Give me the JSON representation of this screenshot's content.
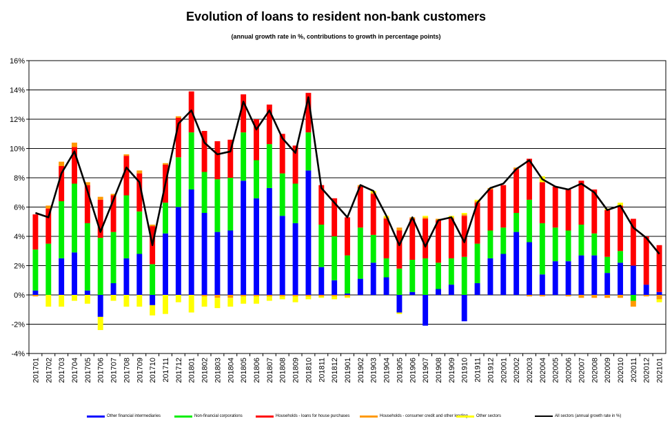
{
  "chart_data": {
    "type": "bar",
    "stacked": true,
    "title": "Evolution of loans to resident non-bank customers",
    "subtitle": "(annual growth rate in %, contributions to growth in percentage points)",
    "ylim": [
      -4,
      16
    ],
    "yticks": [
      "-4%",
      "-2%",
      "0%",
      "2%",
      "4%",
      "6%",
      "8%",
      "10%",
      "12%",
      "14%",
      "16%"
    ],
    "grid": true,
    "legend_position": "bottom",
    "categories": [
      "201701",
      "201702",
      "201703",
      "201704",
      "201705",
      "201706",
      "201707",
      "201708",
      "201709",
      "201710",
      "201711",
      "201712",
      "201801",
      "201802",
      "201803",
      "201804",
      "201805",
      "201806",
      "201807",
      "201808",
      "201809",
      "201810",
      "201811",
      "201812",
      "201901",
      "201902",
      "201903",
      "201904",
      "201905",
      "201906",
      "201907",
      "201908",
      "201909",
      "201910",
      "201911",
      "201912",
      "202001",
      "202002",
      "202003",
      "202004",
      "202005",
      "202006",
      "202007",
      "202008",
      "202009",
      "202010",
      "202011",
      "202012",
      "202101"
    ],
    "series": [
      {
        "name": "Other financial intermediaries",
        "color": "#0000ff",
        "values": [
          0.3,
          0.0,
          2.5,
          2.9,
          0.3,
          -1.5,
          0.8,
          2.5,
          2.8,
          -0.7,
          4.2,
          6.0,
          7.2,
          5.6,
          4.3,
          4.4,
          7.8,
          6.6,
          7.3,
          5.4,
          4.9,
          8.5,
          1.9,
          1.0,
          0.1,
          1.1,
          2.2,
          1.2,
          -1.2,
          0.2,
          -2.1,
          0.4,
          0.7,
          -1.8,
          0.8,
          2.5,
          2.8,
          4.3,
          3.6,
          1.4,
          2.3,
          2.3,
          2.7,
          2.7,
          1.5,
          2.2,
          2.0,
          0.7,
          0.2
        ]
      },
      {
        "name": "Non-financial corporations",
        "color": "#00ee00",
        "values": [
          2.8,
          3.5,
          3.9,
          4.7,
          4.6,
          3.9,
          3.5,
          4.3,
          2.9,
          2.1,
          2.1,
          3.4,
          3.9,
          2.8,
          3.6,
          3.6,
          3.3,
          2.6,
          3.0,
          2.9,
          2.7,
          2.6,
          2.9,
          3.0,
          2.6,
          3.5,
          1.9,
          1.3,
          1.8,
          2.2,
          2.5,
          1.8,
          1.8,
          2.6,
          2.7,
          1.9,
          1.8,
          1.3,
          2.9,
          3.5,
          2.3,
          2.1,
          2.1,
          1.5,
          1.1,
          0.8,
          -0.4,
          0.0,
          0.0
        ]
      },
      {
        "name": "Households - loans for house purchases",
        "color": "#ff0000",
        "values": [
          2.4,
          2.4,
          2.4,
          2.5,
          2.6,
          2.6,
          2.5,
          2.7,
          2.6,
          2.6,
          2.6,
          2.7,
          2.8,
          2.8,
          2.6,
          2.6,
          2.6,
          2.8,
          2.7,
          2.7,
          2.6,
          2.7,
          2.7,
          2.6,
          2.6,
          2.8,
          2.8,
          2.7,
          2.6,
          2.8,
          2.7,
          2.9,
          2.7,
          2.8,
          2.8,
          2.8,
          2.9,
          3.0,
          2.8,
          2.8,
          2.8,
          2.8,
          3.0,
          3.0,
          3.2,
          3.1,
          3.2,
          3.3,
          3.2
        ]
      },
      {
        "name": "Households - consumer credit and other lending",
        "color": "#ff9900",
        "values": [
          -0.1,
          0.2,
          0.3,
          0.3,
          0.2,
          0.2,
          0.1,
          0.1,
          0.2,
          0.1,
          0.1,
          0.1,
          0.0,
          -0.1,
          -0.2,
          -0.2,
          -0.1,
          -0.1,
          -0.1,
          -0.1,
          -0.1,
          -0.1,
          -0.1,
          -0.1,
          -0.1,
          0.1,
          0.1,
          0.1,
          0.2,
          0.1,
          0.1,
          0.1,
          0.1,
          0.1,
          0.1,
          0.1,
          0.0,
          0.1,
          -0.1,
          -0.1,
          0.0,
          -0.1,
          -0.2,
          -0.2,
          -0.2,
          -0.2,
          -0.4,
          -0.1,
          -0.3
        ]
      },
      {
        "name": "Other sectors",
        "color": "#ffff00",
        "values": [
          0.0,
          -0.8,
          -0.8,
          -0.4,
          -0.6,
          -0.9,
          -0.4,
          -0.8,
          -0.8,
          -0.7,
          -1.3,
          -0.5,
          -1.2,
          -0.7,
          -0.7,
          -0.6,
          -0.5,
          -0.5,
          -0.3,
          -0.2,
          -0.4,
          -0.2,
          -0.1,
          -0.2,
          -0.1,
          0.0,
          0.1,
          0.1,
          -0.1,
          0.0,
          0.1,
          0.0,
          0.1,
          0.1,
          0.1,
          0.0,
          0.0,
          0.0,
          0.0,
          0.4,
          0.0,
          0.0,
          0.0,
          0.0,
          0.1,
          0.2,
          0.0,
          0.0,
          -0.2
        ]
      }
    ],
    "line": {
      "name": "All sectors (annual growth rate in %)",
      "color": "#000000",
      "values": [
        5.6,
        5.3,
        8.3,
        9.8,
        7.1,
        4.3,
        6.5,
        8.7,
        7.7,
        3.4,
        7.6,
        11.7,
        12.6,
        10.4,
        9.6,
        9.8,
        13.2,
        11.3,
        12.6,
        10.7,
        9.7,
        13.5,
        7.3,
        6.3,
        5.3,
        7.5,
        7.1,
        5.4,
        3.4,
        5.3,
        3.3,
        5.1,
        5.3,
        3.6,
        6.3,
        7.3,
        7.6,
        8.6,
        9.2,
        7.9,
        7.4,
        7.2,
        7.6,
        7.0,
        5.8,
        6.1,
        4.6,
        3.9,
        2.8
      ]
    }
  }
}
